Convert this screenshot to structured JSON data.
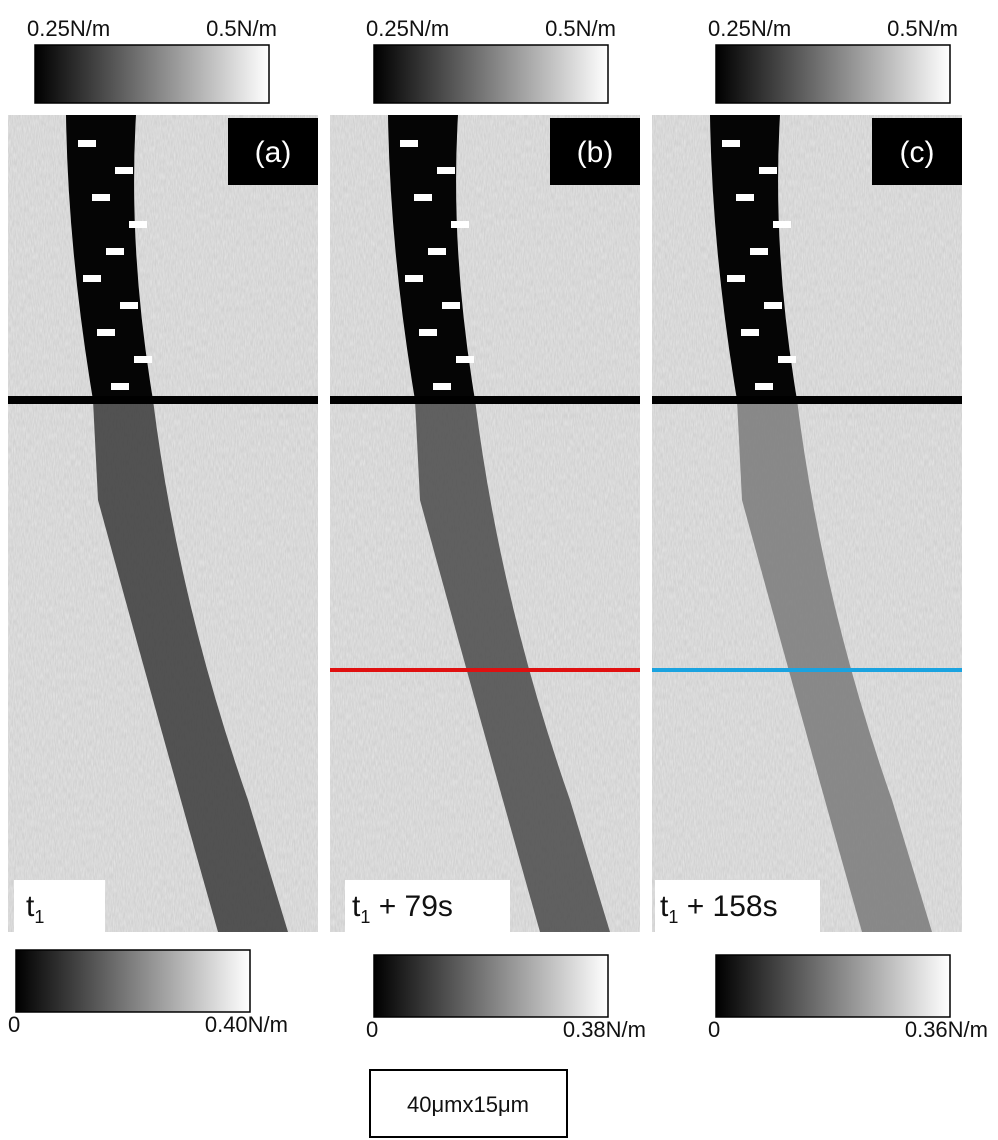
{
  "panels": [
    {
      "label": "(a)",
      "time": "t",
      "time_sub": "1",
      "top_scale": {
        "min_label": "0.25N/m",
        "max_label": "0.5N/m"
      },
      "bottom_scale": {
        "min_label": "0",
        "max_label": "0.40N/m"
      }
    },
    {
      "label": "(b)",
      "time": "t",
      "time_sub": "1",
      "time_rest": " + 79s",
      "top_scale": {
        "min_label": "0.25N/m",
        "max_label": "0.5N/m"
      },
      "bottom_scale": {
        "min_label": "0",
        "max_label": "0.38N/m"
      }
    },
    {
      "label": "(c)",
      "time": "t",
      "time_sub": "1",
      "time_rest": " + 158s",
      "top_scale": {
        "min_label": "0.25N/m",
        "max_label": "0.5N/m"
      },
      "bottom_scale": {
        "min_label": "0",
        "max_label": "0.36N/m"
      }
    }
  ],
  "scale_box": "40μmx15μm"
}
